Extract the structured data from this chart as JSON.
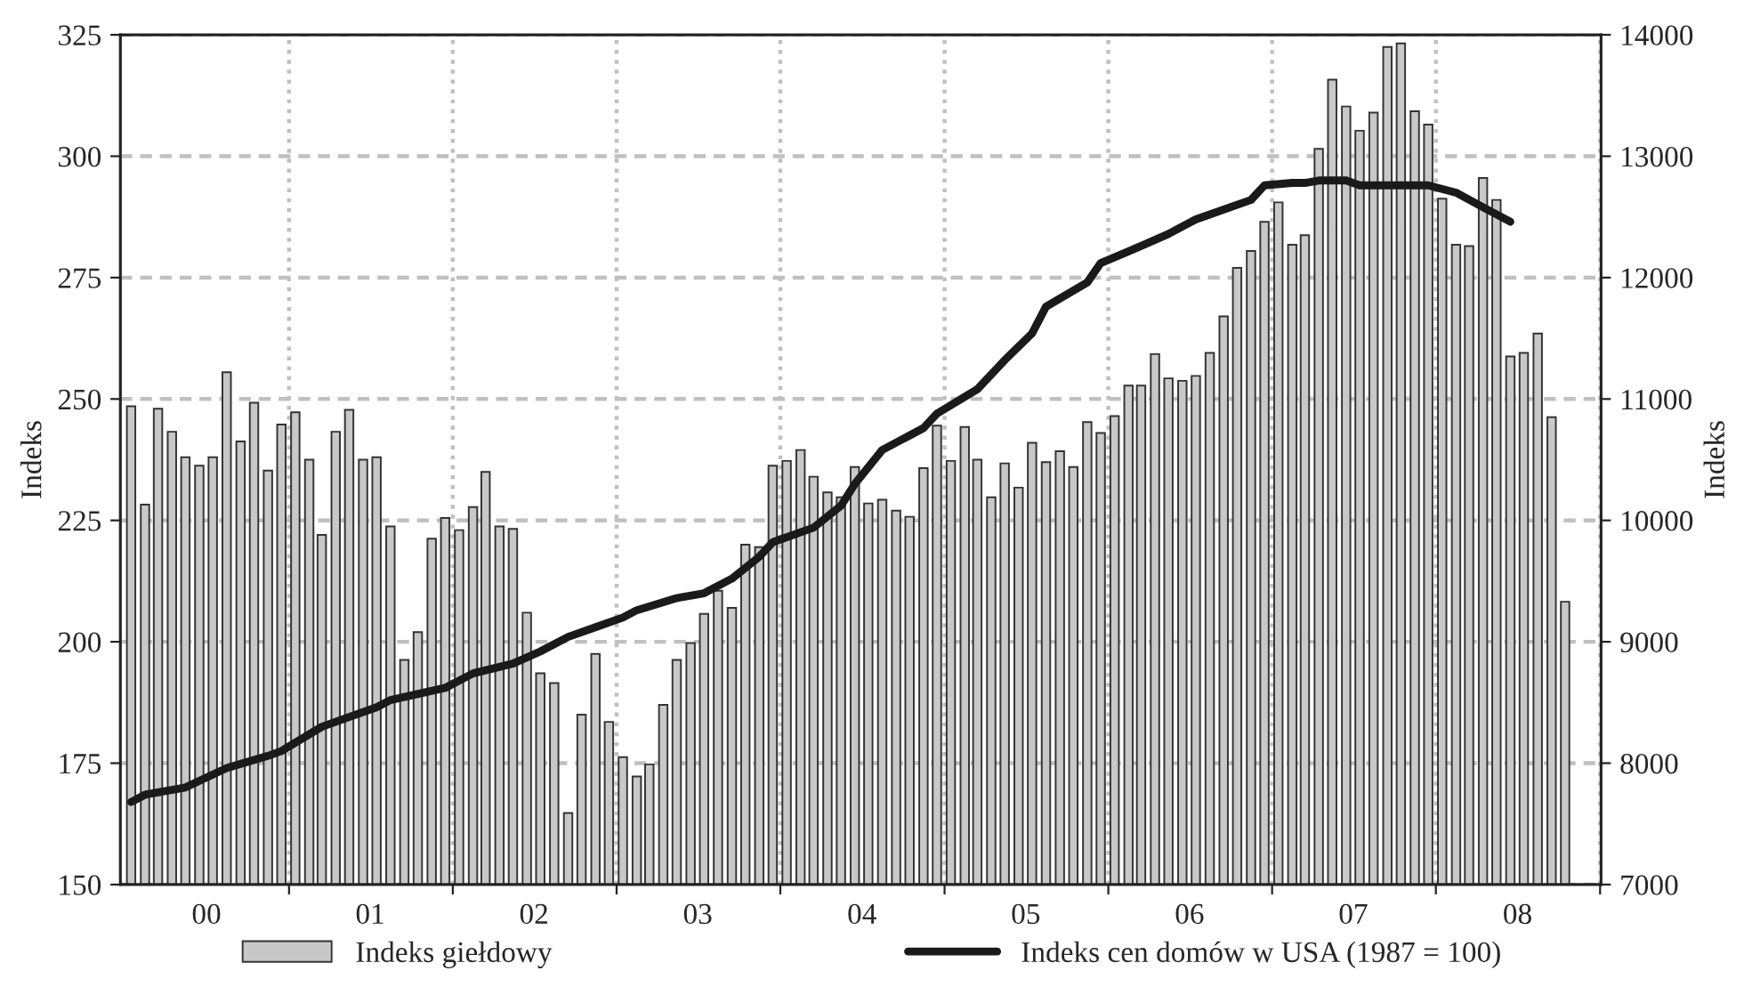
{
  "chart_data": {
    "type": "bar",
    "ylabel": "Indeks",
    "y2label": "Indeks",
    "ylim": [
      150,
      325
    ],
    "yticks": [
      150,
      175,
      200,
      225,
      250,
      275,
      300,
      325
    ],
    "y2lim": [
      7000,
      14000
    ],
    "y2ticks": [
      7000,
      8000,
      9000,
      10000,
      11000,
      12000,
      13000,
      14000
    ],
    "xlim": [
      "1999-12-22",
      "2009-01-03"
    ],
    "xticks": [
      {
        "value": "2000-07-01",
        "label": "00"
      },
      {
        "value": "2001-01-01",
        "label": null
      },
      {
        "value": "2001-07-01",
        "label": "01"
      },
      {
        "value": "2002-01-01",
        "label": null
      },
      {
        "value": "2002-07-01",
        "label": "02"
      },
      {
        "value": "2003-01-01",
        "label": null
      },
      {
        "value": "2003-07-01",
        "label": "03"
      },
      {
        "value": "2004-01-01",
        "label": null
      },
      {
        "value": "2004-07-01",
        "label": "04"
      },
      {
        "value": "2005-01-01",
        "label": null
      },
      {
        "value": "2005-07-01",
        "label": "05"
      },
      {
        "value": "2006-01-01",
        "label": null
      },
      {
        "value": "2006-07-01",
        "label": "06"
      },
      {
        "value": "2007-01-01",
        "label": null
      },
      {
        "value": "2007-07-01",
        "label": "07"
      },
      {
        "value": "2008-01-01",
        "label": null
      },
      {
        "value": "2008-07-01",
        "label": "08"
      },
      {
        "value": "2009-01-01",
        "label": null
      }
    ],
    "grid": true,
    "legend": "bottom",
    "series": [
      {
        "name": "Indeks giełdowy",
        "axis": "y2",
        "color": "#c8c8c8",
        "x": [
          "2000-01-15",
          "2000-02-15",
          "2000-03-15",
          "2000-04-15",
          "2000-05-15",
          "2000-06-15",
          "2000-07-15",
          "2000-08-15",
          "2000-09-15",
          "2000-10-15",
          "2000-11-15",
          "2000-12-15",
          "2001-01-15",
          "2001-02-15",
          "2001-03-15",
          "2001-04-15",
          "2001-05-15",
          "2001-06-15",
          "2001-07-15",
          "2001-08-15",
          "2001-09-15",
          "2001-10-15",
          "2001-11-15",
          "2001-12-15",
          "2002-01-15",
          "2002-02-15",
          "2002-03-15",
          "2002-04-15",
          "2002-05-15",
          "2002-06-15",
          "2002-07-15",
          "2002-08-15",
          "2002-09-15",
          "2002-10-15",
          "2002-11-15",
          "2002-12-15",
          "2003-01-15",
          "2003-02-15",
          "2003-03-15",
          "2003-04-15",
          "2003-05-15",
          "2003-06-15",
          "2003-07-15",
          "2003-08-15",
          "2003-09-15",
          "2003-10-15",
          "2003-11-15",
          "2003-12-15",
          "2004-01-15",
          "2004-02-15",
          "2004-03-15",
          "2004-04-15",
          "2004-05-15",
          "2004-06-15",
          "2004-07-15",
          "2004-08-15",
          "2004-09-15",
          "2004-10-15",
          "2004-11-15",
          "2004-12-15",
          "2005-01-15",
          "2005-02-15",
          "2005-03-15",
          "2005-04-15",
          "2005-05-15",
          "2005-06-15",
          "2005-07-15",
          "2005-08-15",
          "2005-09-15",
          "2005-10-15",
          "2005-11-15",
          "2005-12-15",
          "2006-01-15",
          "2006-02-15",
          "2006-03-15",
          "2006-04-15",
          "2006-05-15",
          "2006-06-15",
          "2006-07-15",
          "2006-08-15",
          "2006-09-15",
          "2006-10-15",
          "2006-11-15",
          "2006-12-15",
          "2007-01-15",
          "2007-02-15",
          "2007-03-15",
          "2007-04-15",
          "2007-05-15",
          "2007-06-15",
          "2007-07-15",
          "2007-08-15",
          "2007-09-15",
          "2007-10-15",
          "2007-11-15",
          "2007-12-15",
          "2008-01-15",
          "2008-02-15",
          "2008-03-15",
          "2008-04-15",
          "2008-05-15",
          "2008-06-15",
          "2008-07-15",
          "2008-08-15",
          "2008-09-15",
          "2008-10-15"
        ],
        "values": [
          10940,
          10130,
          10920,
          10730,
          10520,
          10450,
          10520,
          11220,
          10650,
          10970,
          10410,
          10790,
          10890,
          10500,
          9880,
          10730,
          10910,
          10500,
          10520,
          9950,
          8850,
          9080,
          9850,
          10020,
          9920,
          10110,
          10400,
          9950,
          9930,
          9240,
          8740,
          8660,
          7590,
          8400,
          8900,
          8340,
          8050,
          7890,
          7990,
          8480,
          8850,
          8990,
          9230,
          9420,
          9280,
          9800,
          9780,
          10450,
          10490,
          10580,
          10360,
          10230,
          10190,
          10440,
          10140,
          10170,
          10080,
          10030,
          10430,
          10780,
          10490,
          10770,
          10500,
          10190,
          10470,
          10270,
          10640,
          10480,
          10570,
          10440,
          10810,
          10720,
          10860,
          11110,
          11110,
          11370,
          11170,
          11150,
          11190,
          11380,
          11680,
          12080,
          12220,
          12460,
          12620,
          12270,
          12350,
          13060,
          13630,
          13410,
          13210,
          13360,
          13900,
          13930,
          13370,
          13260,
          12650,
          12270,
          12260,
          12820,
          12640,
          11350,
          11380,
          11540,
          10850,
          9330
        ]
      },
      {
        "name": "Indeks cen domów w USA (1987 = 100)",
        "type": "line",
        "axis": "y",
        "color": "#1a1a1a",
        "x": [
          "2000-01-15",
          "2000-02-15",
          "2000-05-15",
          "2000-08-15",
          "2000-11-15",
          "2000-12-15",
          "2001-03-15",
          "2001-05-15",
          "2001-07-15",
          "2001-08-15",
          "2001-12-15",
          "2002-02-15",
          "2002-05-15",
          "2002-07-15",
          "2002-09-15",
          "2002-11-15",
          "2003-01-15",
          "2003-02-15",
          "2003-05-15",
          "2003-07-15",
          "2003-09-15",
          "2003-11-15",
          "2003-12-15",
          "2004-03-15",
          "2004-05-15",
          "2004-06-15",
          "2004-08-15",
          "2004-11-15",
          "2004-12-15",
          "2005-03-15",
          "2005-05-15",
          "2005-07-15",
          "2005-08-15",
          "2005-11-15",
          "2005-12-15",
          "2006-03-15",
          "2006-05-15",
          "2006-07-15",
          "2006-08-15",
          "2006-11-15",
          "2006-12-15",
          "2007-02-15",
          "2007-03-15",
          "2007-04-15",
          "2007-06-15",
          "2007-07-15",
          "2007-09-15",
          "2007-12-15",
          "2008-02-15",
          "2008-04-15",
          "2008-06-15"
        ],
        "values": [
          167,
          168.5,
          170,
          174,
          176.5,
          177.5,
          182.5,
          184.5,
          186.5,
          188,
          190.5,
          193.5,
          195.5,
          198,
          201,
          203,
          205,
          206.5,
          209,
          210,
          213,
          217.5,
          220.5,
          223.5,
          228,
          232.5,
          239.5,
          244,
          247,
          252,
          258,
          263.5,
          269,
          274,
          278,
          281.5,
          284,
          287,
          288,
          291,
          294,
          294.5,
          294.5,
          295,
          295,
          294,
          294,
          294,
          292.5,
          289.5,
          286.5
        ]
      }
    ]
  }
}
